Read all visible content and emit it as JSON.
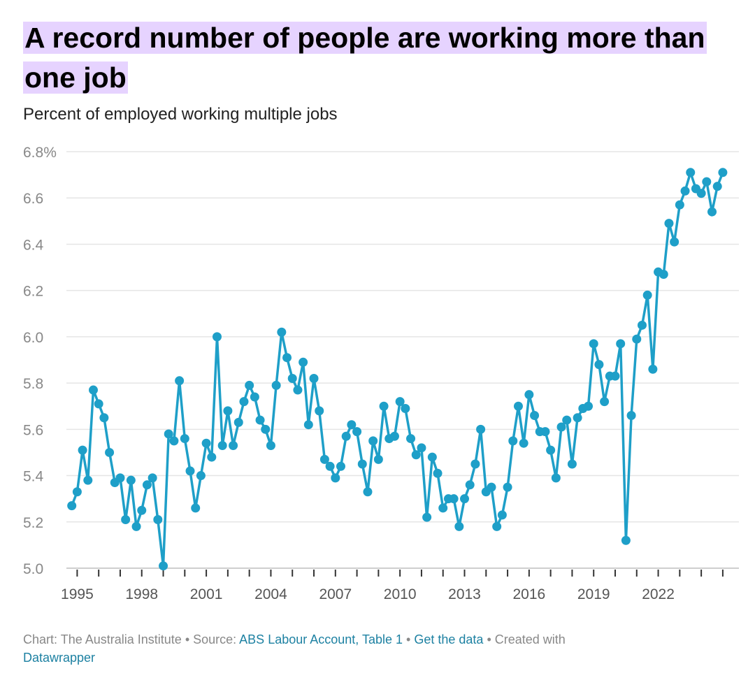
{
  "header": {
    "title": "A record number of people are working more than one job",
    "subtitle": "Percent of employed working multiple jobs"
  },
  "footer": {
    "credit": "Chart: The Australia Institute",
    "source_prefix": "• Source:",
    "source_link": "ABS Labour Account, Table 1",
    "sep1": "•",
    "get_data": "Get the data",
    "created_with": "• Created with",
    "tool": "Datawrapper"
  },
  "colors": {
    "line": "#1e9fc8",
    "grid": "#e5e5e5",
    "tick_text": "#888888",
    "highlight": "#e6d3ff",
    "link": "#1d81a2"
  },
  "chart_data": {
    "type": "line",
    "title": "A record number of people are working more than one job",
    "ylabel": "Percent of employed working multiple jobs",
    "ylim": [
      5.0,
      6.8
    ],
    "xlim": [
      1994.5,
      2025.75
    ],
    "grid": true,
    "y_ticks": [
      5.0,
      5.2,
      5.4,
      5.6,
      5.8,
      6.0,
      6.2,
      6.4,
      6.6,
      6.8
    ],
    "y_tick_labels": [
      "5.0",
      "5.2",
      "5.4",
      "5.6",
      "5.8",
      "6.0",
      "6.2",
      "6.4",
      "6.6",
      "6.8%"
    ],
    "x_ticks": [
      1995,
      1998,
      2001,
      2004,
      2007,
      2010,
      2013,
      2016,
      2019,
      2022
    ],
    "x_tick_labels": [
      "1995",
      "1998",
      "2001",
      "2004",
      "2007",
      "2010",
      "2013",
      "2016",
      "2019",
      "2022"
    ],
    "x_minor_ticks": [
      1996,
      1997,
      1999,
      2000,
      2002,
      2003,
      2005,
      2006,
      2008,
      2009,
      2011,
      2012,
      2014,
      2015,
      2017,
      2018,
      2020,
      2021,
      2023,
      2024,
      2025
    ],
    "start_year": 1994.75,
    "step_years": 0.25,
    "values": [
      5.27,
      5.33,
      5.51,
      5.38,
      5.77,
      5.71,
      5.65,
      5.5,
      5.37,
      5.39,
      5.21,
      5.38,
      5.18,
      5.25,
      5.36,
      5.39,
      5.21,
      5.01,
      5.58,
      5.55,
      5.81,
      5.56,
      5.42,
      5.26,
      5.4,
      5.54,
      5.48,
      6.0,
      5.53,
      5.68,
      5.53,
      5.63,
      5.72,
      5.79,
      5.74,
      5.64,
      5.6,
      5.53,
      5.79,
      6.02,
      5.91,
      5.82,
      5.77,
      5.89,
      5.62,
      5.82,
      5.68,
      5.47,
      5.44,
      5.39,
      5.44,
      5.57,
      5.62,
      5.59,
      5.45,
      5.33,
      5.55,
      5.47,
      5.7,
      5.56,
      5.57,
      5.72,
      5.69,
      5.56,
      5.49,
      5.52,
      5.22,
      5.48,
      5.41,
      5.26,
      5.3,
      5.3,
      5.18,
      5.3,
      5.36,
      5.45,
      5.6,
      5.33,
      5.35,
      5.18,
      5.23,
      5.35,
      5.55,
      5.7,
      5.54,
      5.75,
      5.66,
      5.59,
      5.59,
      5.51,
      5.39,
      5.61,
      5.64,
      5.45,
      5.65,
      5.69,
      5.7,
      5.97,
      5.88,
      5.72,
      5.83,
      5.83,
      5.97,
      5.12,
      5.66,
      5.99,
      6.05,
      6.18,
      5.86,
      6.28,
      6.27,
      6.49,
      6.41,
      6.57,
      6.63,
      6.71,
      6.64,
      6.62,
      6.67,
      6.54,
      6.65,
      6.71
    ]
  }
}
